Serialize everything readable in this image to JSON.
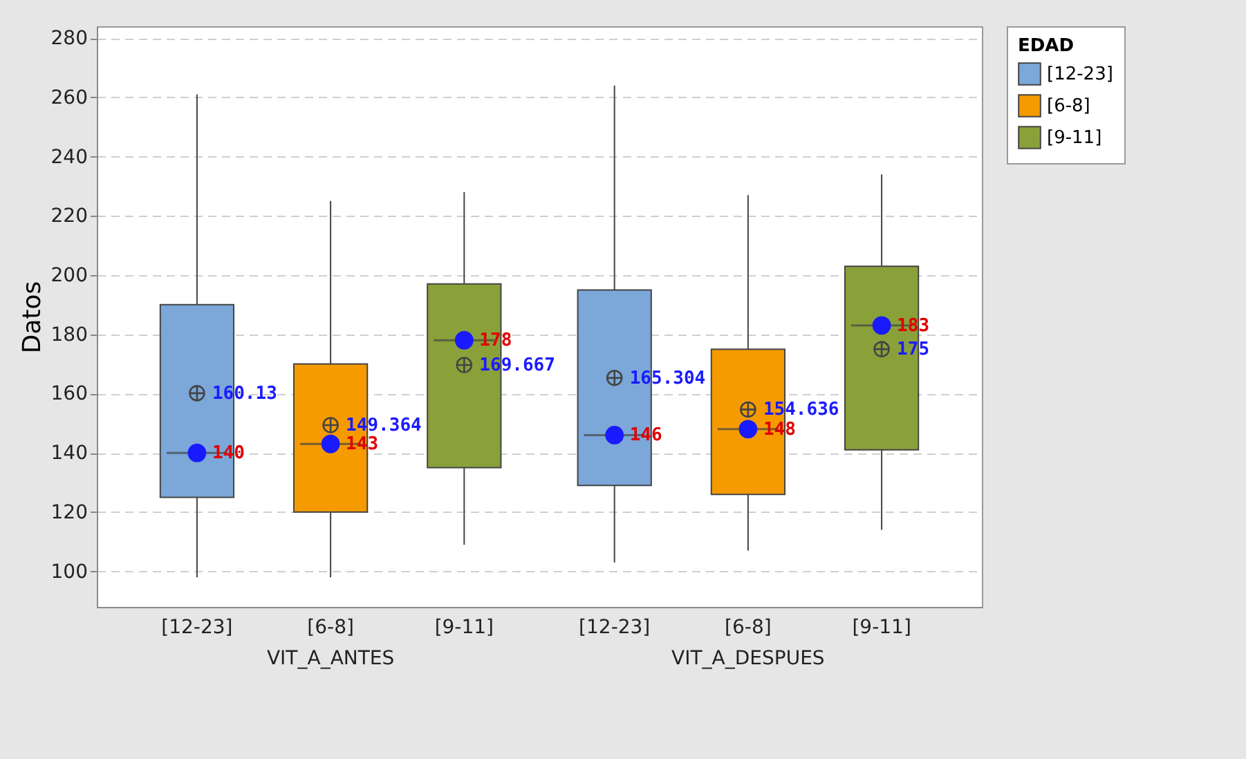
{
  "chart_data": {
    "type": "box",
    "ylabel": "Datos",
    "legend_title": "EDAD",
    "categories": [
      "VIT_A_ANTES",
      "VIT_A_DESPUES"
    ],
    "ylim": [
      88,
      284
    ],
    "yticks": [
      100,
      120,
      140,
      160,
      180,
      200,
      220,
      240,
      260,
      280
    ],
    "grid": "y",
    "legend": "top right",
    "series": [
      {
        "name": "[12-23]",
        "color": "#7ba7d9",
        "boxes": [
          {
            "low": 98,
            "q1": 125,
            "median": 140,
            "q3": 190,
            "high": 261,
            "mean": 160.13
          },
          {
            "low": 103,
            "q1": 129,
            "median": 146,
            "q3": 195,
            "high": 264,
            "mean": 165.304
          }
        ]
      },
      {
        "name": "[6-8]",
        "color": "#f59b00",
        "boxes": [
          {
            "low": 98,
            "q1": 120,
            "median": 143,
            "q3": 170,
            "high": 225,
            "mean": 149.364
          },
          {
            "low": 107,
            "q1": 126,
            "median": 148,
            "q3": 175,
            "high": 227,
            "mean": 154.636
          }
        ]
      },
      {
        "name": "[9-11]",
        "color": "#8aa13a",
        "boxes": [
          {
            "low": 109,
            "q1": 135,
            "median": 178,
            "q3": 197,
            "high": 228,
            "mean": 169.667
          },
          {
            "low": 114,
            "q1": 141,
            "median": 183,
            "q3": 203,
            "high": 234,
            "mean": 175
          }
        ]
      },
      {
        "type": "scatter",
        "color": "#1a1aff",
        "x": [
          "VIT_A_ANTES",
          "VIT_A_DESPUES"
        ],
        "values": [
          140,
          146
        ]
      },
      {
        "type": "scatter",
        "color": "#1a1aff",
        "x": [
          "VIT_A_ANTES",
          "VIT_A_DESPUES"
        ],
        "values": [
          143,
          148
        ]
      },
      {
        "type": "scatter",
        "color": "#1a1aff",
        "x": [
          "VIT_A_ANTES",
          "VIT_A_DESPUES"
        ],
        "values": [
          178,
          183
        ]
      }
    ],
    "annotations": [
      "140",
      "160.13",
      "146",
      "165.304",
      "143",
      "149.364",
      "148",
      "154.636",
      "178",
      "169.667",
      "183",
      "175"
    ]
  }
}
